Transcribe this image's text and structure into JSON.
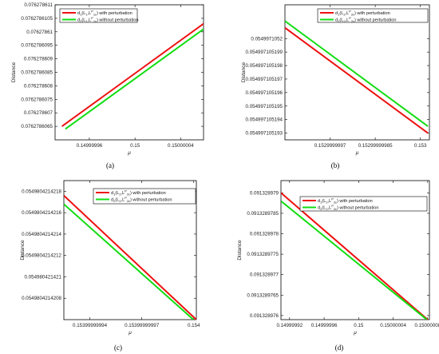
{
  "chart_data": [
    {
      "type": "line",
      "panel_label": "(a)",
      "xlabel": "μ",
      "ylabel": "Distance",
      "xlim": [
        0.149999993,
        0.150000006
      ],
      "ylim": [
        0.076278606,
        0.076278611
      ],
      "x_ticks": [
        {
          "v": 0.149999996,
          "label": "0.14999996"
        },
        {
          "v": 0.15,
          "label": "0.15"
        },
        {
          "v": 0.150000004,
          "label": "0.15000004"
        }
      ],
      "y_ticks": [
        {
          "v": 0.0762786065,
          "label": "0.0762786065"
        },
        {
          "v": 0.076278607,
          "label": "0.076278607"
        },
        {
          "v": 0.0762786075,
          "label": "0.0762786075"
        },
        {
          "v": 0.076278608,
          "label": "0.076278608"
        },
        {
          "v": 0.0762786085,
          "label": "0.0762786085"
        },
        {
          "v": 0.076278609,
          "label": "0.076278609"
        },
        {
          "v": 0.0762786095,
          "label": "0.0762786095"
        },
        {
          "v": 0.07627861,
          "label": "0.07627861"
        },
        {
          "v": 0.0762786105,
          "label": "0.0762786105"
        },
        {
          "v": 0.076278611,
          "label": "0.076278611"
        }
      ],
      "series": [
        {
          "name": "d1 with perturbation",
          "color": "#ee1111",
          "points": [
            [
              0.1499999936,
              0.0762786065
            ],
            [
              0.150000006,
              0.0762786103
            ]
          ]
        },
        {
          "name": "d2 without perturbation",
          "color": "#11dd11",
          "points": [
            [
              0.1499999939,
              0.0762786064
            ],
            [
              0.150000006,
              0.0762786101
            ]
          ]
        }
      ],
      "legend": {
        "position": "top-left",
        "entries": [
          {
            "lead": "d",
            "sub1": "1",
            "mid": "(L",
            "sub2": "1",
            "mid2": ",L",
            "sup": "P",
            "sub3": "1",
            "tail": ") with perturbation",
            "sub4": "ε"
          },
          {
            "lead": "d",
            "sub1": "2",
            "mid": "(L",
            "sub2": "1",
            "mid2": ",L",
            "sup": "P",
            "sub3": "1",
            "tail": ") without perturbation",
            "sub4": "ε"
          }
        ]
      }
    },
    {
      "type": "line",
      "panel_label": "(b)",
      "xlabel": "μ",
      "ylabel": "Distance",
      "xlim": [
        0.15299999955,
        0.15300000003
      ],
      "ylim": [
        0.0549971051925,
        0.0549971052025
      ],
      "x_ticks": [
        {
          "v": 0.1529999997,
          "label": "0.1529999997"
        },
        {
          "v": 0.15299999985,
          "label": "0.15299999985"
        },
        {
          "v": 0.153,
          "label": "0.153"
        }
      ],
      "y_ticks": [
        {
          "v": 0.054997105193,
          "label": "0.054997105193"
        },
        {
          "v": 0.054997105194,
          "label": "0.054997105194"
        },
        {
          "v": 0.054997105195,
          "label": "0.054997105195"
        },
        {
          "v": 0.054997105196,
          "label": "0.054997105196"
        },
        {
          "v": 0.054997105197,
          "label": "0.054997105197"
        },
        {
          "v": 0.054997105198,
          "label": "0.054997105198"
        },
        {
          "v": 0.054997105199,
          "label": "0.054997105199"
        },
        {
          "v": 0.0549971052,
          "label": "0.0549971052"
        }
      ],
      "series": [
        {
          "name": "d1 with perturbation",
          "color": "#ee1111",
          "points": [
            [
              0.15299999955,
              0.0549971052008
            ],
            [
              0.153000000025,
              0.054997105193
            ]
          ]
        },
        {
          "name": "d2 without perturbation",
          "color": "#11dd11",
          "points": [
            [
              0.15299999955,
              0.0549971052013
            ],
            [
              0.153000000025,
              0.0549971051935
            ]
          ]
        }
      ],
      "legend": {
        "position": "top-right",
        "entries": [
          {
            "lead": "d",
            "sub1": "1",
            "mid": "(L",
            "sub2": "2",
            "mid2": ",L",
            "sup": "P",
            "sub3": "2",
            "tail": ") with perturbation",
            "sub4": "ε"
          },
          {
            "lead": "d",
            "sub1": "2",
            "mid": "(L",
            "sub2": "2",
            "mid2": ",L",
            "sup": "P",
            "sub3": "2",
            "tail": ") without perturbation",
            "sub4": "ε"
          }
        ]
      }
    },
    {
      "type": "line",
      "panel_label": "(c)",
      "xlabel": "μ",
      "ylabel": "Distance",
      "xlim": [
        0.153999999925,
        0.1540000000015
      ],
      "ylim": [
        0.0549804214206,
        0.0549804214219
      ],
      "x_ticks": [
        {
          "v": 0.15399999994,
          "label": "0.15399999994"
        },
        {
          "v": 0.15399999997,
          "label": "0.15399999997"
        },
        {
          "v": 0.154,
          "label": "0.154"
        }
      ],
      "y_ticks": [
        {
          "v": 0.0549804214208,
          "label": "0.0549804214208"
        },
        {
          "v": 0.054980421421,
          "label": "0.054980421421"
        },
        {
          "v": 0.0549804214212,
          "label": "0.0549804214212"
        },
        {
          "v": 0.0549804214214,
          "label": "0.0549804214214"
        },
        {
          "v": 0.0549804214216,
          "label": "0.0549804214216"
        },
        {
          "v": 0.0549804214218,
          "label": "0.0549804214218"
        }
      ],
      "series": [
        {
          "name": "d1 with perturbation",
          "color": "#ee1111",
          "points": [
            [
              0.153999999925,
              0.05498042142176
            ],
            [
              0.1540000000015,
              0.0549804214206
            ]
          ]
        },
        {
          "name": "d2 without perturbation",
          "color": "#11dd11",
          "points": [
            [
              0.153999999925,
              0.05498042142168
            ],
            [
              0.1539999999998,
              0.0549804214206
            ]
          ]
        }
      ],
      "legend": {
        "position": "top-right",
        "entries": [
          {
            "lead": "d",
            "sub1": "1",
            "mid": "(L",
            "sub2": "2",
            "mid2": ",L",
            "sup": "P",
            "sub3": "2",
            "tail": ") with perturbation",
            "sub4": "ε"
          },
          {
            "lead": "d",
            "sub1": "2",
            "mid": "(L",
            "sub2": "2",
            "mid2": ",L",
            "sup": "P",
            "sub3": "2",
            "tail": ") without perturbation",
            "sub4": "ε"
          }
        ]
      }
    },
    {
      "type": "line",
      "panel_label": "(d)",
      "xlabel": "μ",
      "ylabel": "Distance",
      "xlim": [
        0.149999991,
        0.1500000082
      ],
      "ylim": [
        0.0913289759,
        0.0913289793
      ],
      "x_ticks": [
        {
          "v": 0.149999992,
          "label": "0.14999992"
        },
        {
          "v": 0.149999996,
          "label": "0.14999996"
        },
        {
          "v": 0.15,
          "label": "0.15"
        },
        {
          "v": 0.150000004,
          "label": "0.15000004"
        },
        {
          "v": 0.150000008,
          "label": "0.15000008"
        }
      ],
      "y_ticks": [
        {
          "v": 0.091328976,
          "label": "0.091328976"
        },
        {
          "v": 0.0913289765,
          "label": "0.0913289765"
        },
        {
          "v": 0.091328977,
          "label": "0.091328977"
        },
        {
          "v": 0.0913289775,
          "label": "0.0913289775"
        },
        {
          "v": 0.091328978,
          "label": "0.091328978"
        },
        {
          "v": 0.0913289785,
          "label": "0.0913289785"
        },
        {
          "v": 0.091328979,
          "label": "0.091328979"
        }
      ],
      "series": [
        {
          "name": "d1 with perturbation",
          "color": "#ee1111",
          "points": [
            [
              0.149999991,
              0.091328979
            ],
            [
              0.150000008,
              0.0913289759
            ]
          ]
        },
        {
          "name": "d2 without perturbation",
          "color": "#11dd11",
          "points": [
            [
              0.149999991,
              0.0913289788
            ],
            [
              0.1500000079,
              0.0913289759
            ]
          ]
        }
      ],
      "legend": {
        "position": "top-right",
        "entries": [
          {
            "lead": "d",
            "sub1": "1",
            "mid": "(L",
            "sub2": "2",
            "mid2": ",L",
            "sup": "P",
            "sub3": "2",
            "tail": ") with perturbation",
            "sub4": "ε"
          },
          {
            "lead": "d",
            "sub1": "2",
            "mid": "(L",
            "sub2": "2",
            "mid2": ",L",
            "sup": "P",
            "sub3": "2",
            "tail": ") without perturbation",
            "sub4": "ε"
          }
        ]
      }
    }
  ]
}
